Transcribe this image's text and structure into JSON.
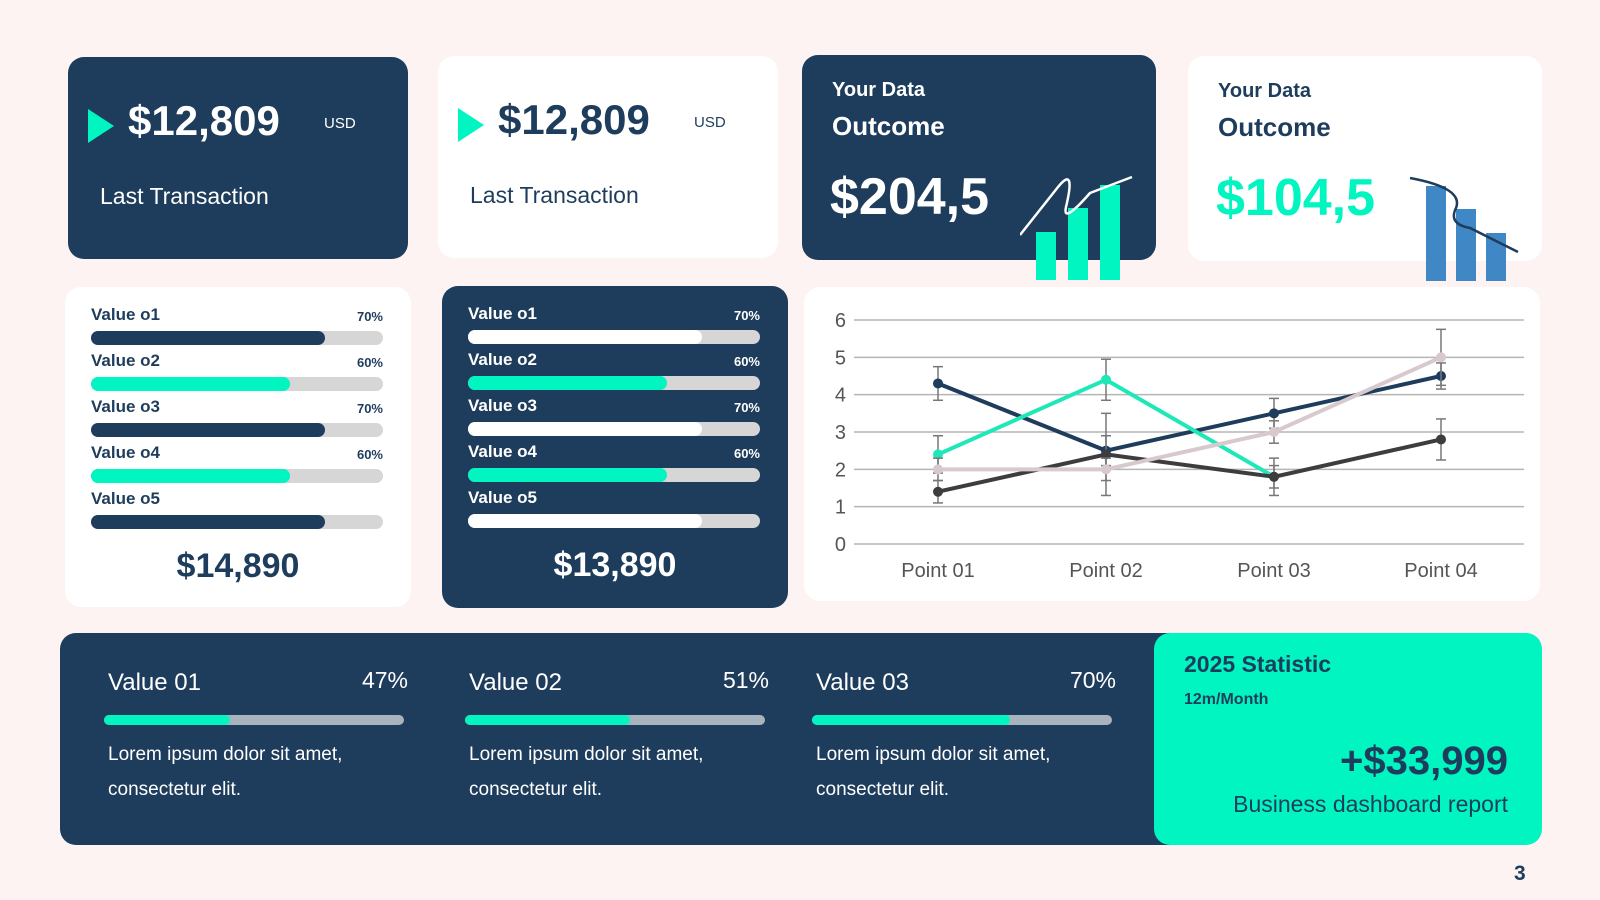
{
  "transactions": [
    {
      "amount": "$12,809",
      "currency": "USD",
      "label": "Last Transaction"
    },
    {
      "amount": "$12,809",
      "currency": "USD",
      "label": "Last Transaction"
    }
  ],
  "outcomes": [
    {
      "title1": "Your Data",
      "title2": "Outcome",
      "value": "$204,5"
    },
    {
      "title1": "Your Data",
      "title2": "Outcome",
      "value": "$104,5"
    }
  ],
  "progress_lists": [
    {
      "items": [
        {
          "label": "Value o1",
          "pct": "70%",
          "fill": 0.8,
          "color": "#1e3d5c"
        },
        {
          "label": "Value o2",
          "pct": "60%",
          "fill": 0.68,
          "color": "#00f5c0"
        },
        {
          "label": "Value o3",
          "pct": "70%",
          "fill": 0.8,
          "color": "#1e3d5c"
        },
        {
          "label": "Value o4",
          "pct": "60%",
          "fill": 0.68,
          "color": "#00f5c0"
        },
        {
          "label": "Value o5",
          "pct": "",
          "fill": 0.8,
          "color": "#1e3d5c"
        }
      ],
      "total": "$14,890"
    },
    {
      "items": [
        {
          "label": "Value o1",
          "pct": "70%",
          "fill": 0.8,
          "color": "#ffffff"
        },
        {
          "label": "Value o2",
          "pct": "60%",
          "fill": 0.68,
          "color": "#00f5c0"
        },
        {
          "label": "Value o3",
          "pct": "70%",
          "fill": 0.8,
          "color": "#ffffff"
        },
        {
          "label": "Value o4",
          "pct": "60%",
          "fill": 0.68,
          "color": "#00f5c0"
        },
        {
          "label": "Value o5",
          "pct": "",
          "fill": 0.8,
          "color": "#ffffff"
        }
      ],
      "total": "$13,890"
    }
  ],
  "chart_data": {
    "type": "line",
    "categories": [
      "Point 01",
      "Point 02",
      "Point 03",
      "Point 04"
    ],
    "ylim": [
      0,
      6
    ],
    "yticks": [
      0,
      1,
      2,
      3,
      4,
      5,
      6
    ],
    "grid": true,
    "legend": "none",
    "series": [
      {
        "values": [
          4.3,
          2.5,
          3.5,
          4.5
        ],
        "errors": [
          0.45,
          0.4,
          0.4,
          0.35
        ],
        "color": "#1e3d5c"
      },
      {
        "values": [
          2.4,
          4.4,
          1.8,
          null
        ],
        "errors": [
          0.5,
          0.55,
          0.3,
          0
        ],
        "color": "#1fe8b8"
      },
      {
        "values": [
          1.4,
          2.4,
          1.8,
          2.8
        ],
        "errors": [
          0.3,
          1.1,
          0.5,
          0.55
        ],
        "color": "#3d3d3d"
      },
      {
        "values": [
          2.0,
          2.0,
          3.0,
          5.0
        ],
        "errors": [
          0.3,
          0.3,
          0.3,
          0.75
        ],
        "color": "#d8c9cd"
      }
    ]
  },
  "stats": [
    {
      "label": "Value 01",
      "pct": "47%",
      "fill": 0.42,
      "desc": "Lorem ipsum dolor sit amet, consectetur elit."
    },
    {
      "label": "Value 02",
      "pct": "51%",
      "fill": 0.55,
      "desc": "Lorem ipsum dolor sit amet, consectetur elit."
    },
    {
      "label": "Value 03",
      "pct": "70%",
      "fill": 0.66,
      "desc": "Lorem ipsum dolor sit amet, consectetur elit."
    }
  ],
  "statistic": {
    "title": "2025 Statistic",
    "subtitle": "12m/Month",
    "value": "+$33,999",
    "caption": "Business dashboard report"
  },
  "page_number": "3",
  "colors": {
    "navy": "#1e3d5c",
    "mint": "#00f5c0",
    "blue_bars": "#3f88c5"
  }
}
